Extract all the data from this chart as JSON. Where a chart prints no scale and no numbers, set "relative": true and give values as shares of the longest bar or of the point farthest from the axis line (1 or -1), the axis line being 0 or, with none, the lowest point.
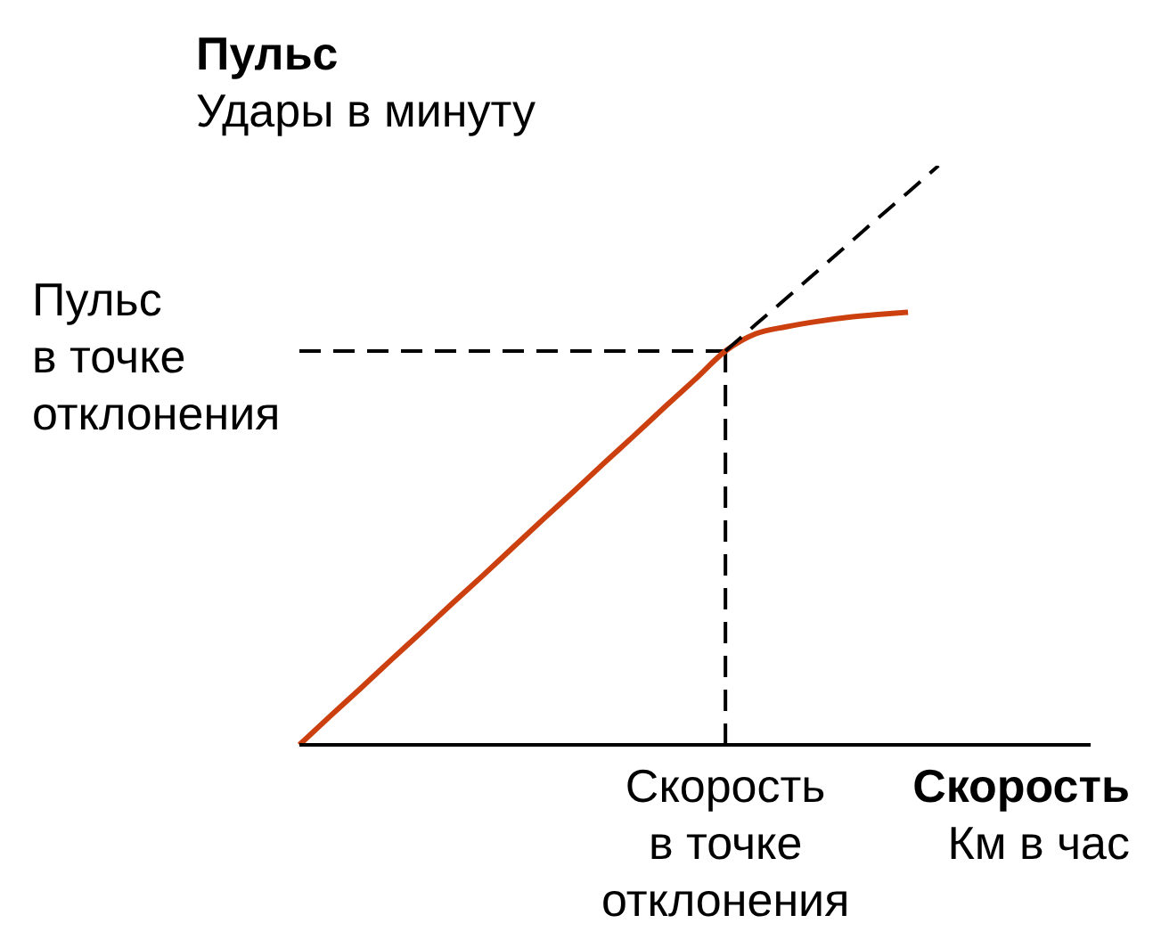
{
  "chart_data": {
    "type": "line",
    "relative": true,
    "xlabel": "Скорость\nКм в час",
    "ylabel": "Пульс\nУдары в минуту",
    "categories": [
      null,
      null,
      null,
      null,
      null,
      null,
      null,
      null,
      null,
      null,
      null,
      null,
      null,
      null,
      null,
      null,
      null,
      null,
      null,
      null,
      null,
      null,
      null,
      null,
      null,
      null,
      null
    ],
    "series": [
      {
        "color": "#cc4010",
        "line_style": "solid",
        "values": [
          0,
          0.049,
          0.097,
          0.146,
          0.194,
          0.243,
          0.291,
          0.34,
          0.389,
          0.437,
          0.486,
          0.534,
          0.583,
          0.631,
          0.68,
          0.71,
          0.722,
          0.731,
          0.738,
          0.743,
          0.747,
          null,
          null,
          null,
          null,
          null,
          null
        ]
      },
      {
        "color": "#000000",
        "line_style": "dashed",
        "values": [
          null,
          null,
          null,
          null,
          null,
          null,
          null,
          null,
          null,
          null,
          null,
          null,
          null,
          null,
          0.68,
          0.726,
          0.771,
          0.817,
          0.863,
          0.909,
          0.954,
          1.0,
          null,
          null,
          null,
          null,
          null
        ]
      }
    ],
    "ref_lines": [
      {
        "axis": "y",
        "value": 0.68,
        "label": "Пульс в точке отклонения",
        "color": "#000000",
        "line_style": "dashed"
      }
    ],
    "annotations": [
      "Скорость в точке отклонения"
    ],
    "marker": "none",
    "grid": false,
    "legend": false
  }
}
